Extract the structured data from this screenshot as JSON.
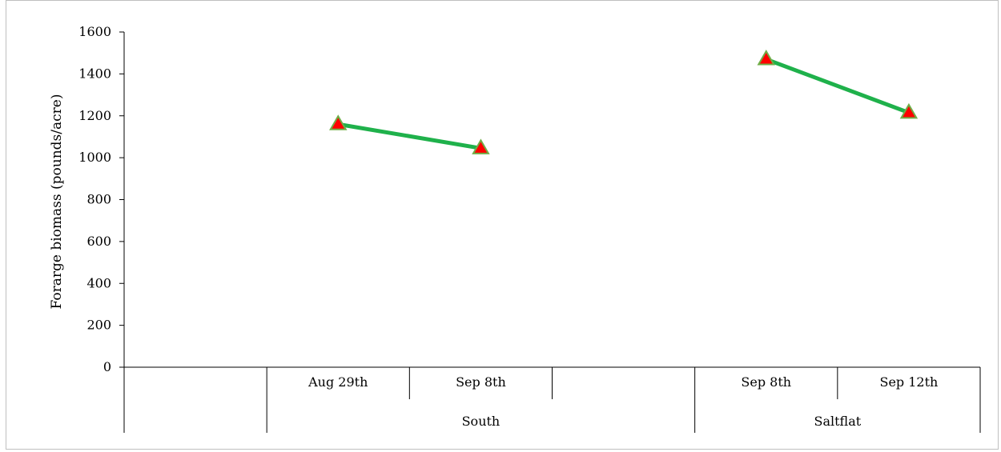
{
  "chart_data": {
    "type": "line",
    "ylabel": "Forarge biomass (pounds/acre)",
    "ylim": [
      0,
      1600
    ],
    "yticks": [
      0,
      200,
      400,
      600,
      800,
      1000,
      1200,
      1400,
      1600
    ],
    "grid": false,
    "legend": "none",
    "x_levels": {
      "outer": [
        {
          "label": "",
          "span": [
            0,
            0
          ]
        },
        {
          "label": "South",
          "span": [
            1,
            3
          ]
        },
        {
          "label": "Saltflat",
          "span": [
            4,
            5
          ]
        }
      ],
      "categories": [
        "",
        "Aug 29th",
        "Sep 8th",
        "",
        "Sep 8th",
        "Sep 12th"
      ]
    },
    "series": [
      {
        "values": [
          null,
          1160,
          1045,
          null,
          1470,
          1215
        ],
        "line_color": "#1fb14b",
        "marker": "triangle",
        "marker_fill": "#ff0000",
        "marker_edge": "#70ad47"
      }
    ]
  }
}
